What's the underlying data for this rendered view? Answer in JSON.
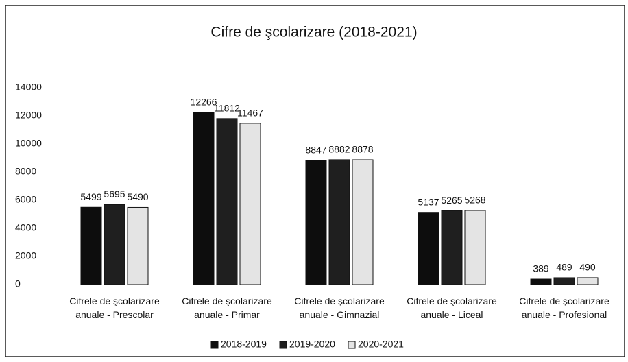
{
  "chart_data": {
    "type": "bar",
    "title": "Cifre de şcolarizare (2018-2021)",
    "categories": [
      "Cifrele de şcolarizare anuale - Prescolar",
      "Cifrele de şcolarizare anuale - Primar",
      "Cifrele de şcolarizare anuale - Gimnazial",
      "Cifrele de şcolarizare anuale - Liceal",
      "Cifrele de şcolarizare anuale - Profesional"
    ],
    "series": [
      {
        "name": "2018-2019",
        "color": "#0d0d0d",
        "values": [
          5499,
          12266,
          8847,
          5137,
          389
        ]
      },
      {
        "name": "2019-2020",
        "color": "#1f1f1f",
        "values": [
          5695,
          11812,
          8882,
          5265,
          489
        ]
      },
      {
        "name": "2020-2021",
        "color": "#e4e4e4",
        "values": [
          5490,
          11467,
          8878,
          5268,
          490
        ]
      }
    ],
    "ylim": [
      0,
      14000
    ],
    "yticks": [
      0,
      2000,
      4000,
      6000,
      8000,
      10000,
      12000,
      14000
    ],
    "grid": false,
    "legend": "bottom"
  }
}
